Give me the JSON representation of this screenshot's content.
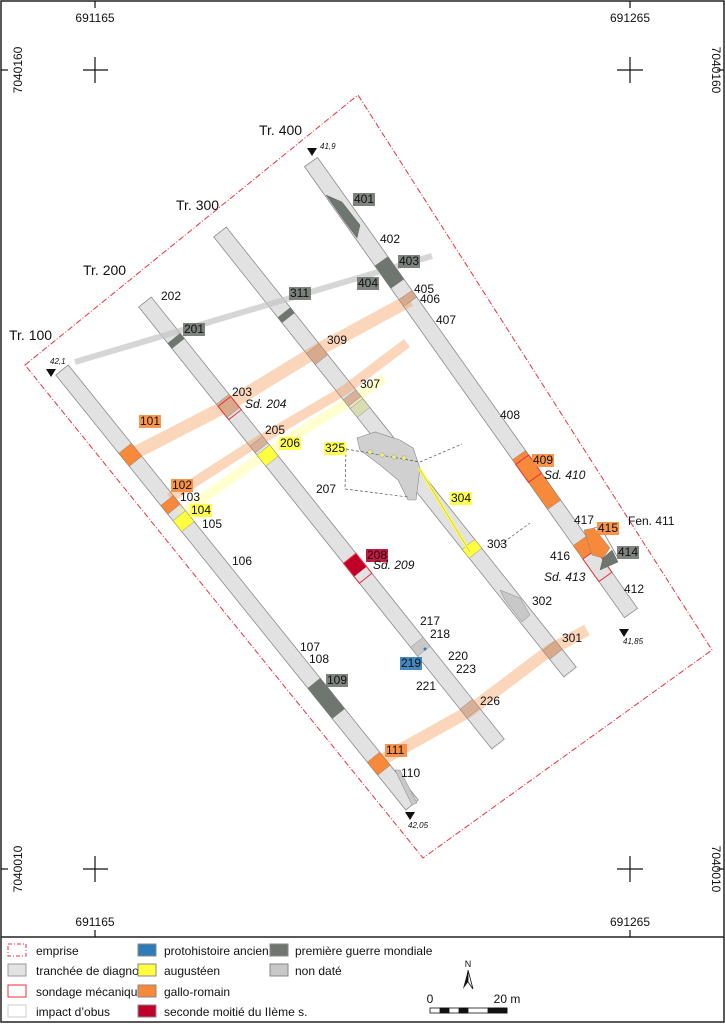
{
  "coordinates": {
    "x_left": "691165",
    "x_right": "691265",
    "y_top": "7040160",
    "y_bottom": "7040010"
  },
  "trenches": [
    "Tr. 100",
    "Tr. 200",
    "Tr. 300",
    "Tr. 400"
  ],
  "elevations": [
    "42,1",
    "41,9",
    "42,05",
    "41,85"
  ],
  "labels": {
    "f101": "101",
    "f102": "102",
    "f103": "103",
    "f104": "104",
    "f105": "105",
    "f106": "106",
    "f107": "107",
    "f108": "108",
    "f109": "109",
    "f110": "110",
    "f111": "111",
    "f201": "201",
    "f202": "202",
    "f203": "203",
    "sd204": "Sd. 204",
    "f205": "205",
    "f206": "206",
    "f207": "207",
    "f208": "208",
    "sd209": "Sd. 209",
    "f217": "217",
    "f218": "218",
    "f219": "219",
    "f220": "220",
    "f221": "221",
    "f223": "223",
    "f226": "226",
    "f301": "301",
    "f302": "302",
    "f303": "303",
    "f304": "304",
    "f307": "307",
    "f309": "309",
    "f311": "311",
    "f325": "325",
    "f401": "401",
    "f402": "402",
    "f403": "403",
    "f404": "404",
    "f405": "405",
    "f406": "406",
    "f407": "407",
    "f408": "408",
    "f409": "409",
    "sd410": "Sd. 410",
    "fen411": "Fen. 411",
    "f412": "412",
    "sd413": "Sd. 413",
    "f414": "414",
    "f415": "415",
    "f416": "416",
    "f417": "417"
  },
  "colors": {
    "emprise": "#e8323c",
    "trench": "#e2e2e2",
    "sondage": "#e8323c",
    "protohistoire": "#2f7bb8",
    "augusteen": "#ffff40",
    "gallo_romain": "#f7893b",
    "seconde_moitie": "#c0002b",
    "premiere_guerre": "#6f766f",
    "non_date": "#c8c8c8"
  },
  "legend": {
    "items": [
      {
        "key": "emprise",
        "label": "emprise"
      },
      {
        "key": "tranchee",
        "label": "tranchée de diagnostic"
      },
      {
        "key": "sondage",
        "label": "sondage mécanique"
      },
      {
        "key": "impact",
        "label": "impact d’obus"
      },
      {
        "key": "protohistoire",
        "label": "protohistoire ancienne"
      },
      {
        "key": "augusteen",
        "label": "augustéen"
      },
      {
        "key": "gallo_romain",
        "label": "gallo-romain"
      },
      {
        "key": "seconde_moitie",
        "label": "seconde moitié du IIème s."
      },
      {
        "key": "premiere_guerre",
        "label": "première guerre mondiale"
      },
      {
        "key": "non_date",
        "label": "non daté"
      }
    ],
    "north": "N",
    "scale_start": "0",
    "scale_end": "20 m"
  }
}
